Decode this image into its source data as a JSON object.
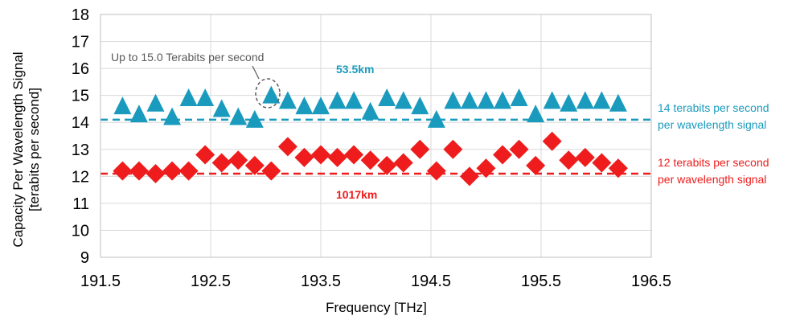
{
  "chart_data": {
    "type": "scatter",
    "xlabel": "Frequency [THz]",
    "ylabel_lines": [
      "Capacity Per Wavelength Signal",
      "[terabits per second]"
    ],
    "xlim": [
      191.5,
      196.5
    ],
    "ylim": [
      9,
      18
    ],
    "x_ticks": [
      "191.5",
      "192.5",
      "193.5",
      "194.5",
      "195.5",
      "196.5"
    ],
    "y_ticks": [
      "9",
      "10",
      "11",
      "12",
      "13",
      "14",
      "15",
      "16",
      "17",
      "18"
    ],
    "grid": true,
    "series": [
      {
        "name": "53.5km",
        "marker": "triangle",
        "color": "#1a9bbd",
        "x": [
          191.7,
          191.85,
          192.0,
          192.15,
          192.3,
          192.45,
          192.6,
          192.75,
          192.9,
          193.05,
          193.2,
          193.35,
          193.5,
          193.65,
          193.8,
          193.95,
          194.1,
          194.25,
          194.4,
          194.55,
          194.7,
          194.85,
          195.0,
          195.15,
          195.3,
          195.45,
          195.6,
          195.75,
          195.9,
          196.05,
          196.2
        ],
        "y": [
          14.6,
          14.3,
          14.7,
          14.2,
          14.9,
          14.9,
          14.5,
          14.2,
          14.1,
          15.0,
          14.8,
          14.6,
          14.6,
          14.8,
          14.8,
          14.4,
          14.9,
          14.8,
          14.6,
          14.1,
          14.8,
          14.8,
          14.8,
          14.8,
          14.9,
          14.3,
          14.8,
          14.7,
          14.8,
          14.8,
          14.7
        ]
      },
      {
        "name": "1017km",
        "marker": "diamond",
        "color": "#ee1c1c",
        "x": [
          191.7,
          191.85,
          192.0,
          192.15,
          192.3,
          192.45,
          192.6,
          192.75,
          192.9,
          193.05,
          193.2,
          193.35,
          193.5,
          193.65,
          193.8,
          193.95,
          194.1,
          194.25,
          194.4,
          194.55,
          194.7,
          194.85,
          195.0,
          195.15,
          195.3,
          195.45,
          195.6,
          195.75,
          195.9,
          196.05,
          196.2
        ],
        "y": [
          12.2,
          12.2,
          12.1,
          12.2,
          12.2,
          12.8,
          12.5,
          12.6,
          12.4,
          12.2,
          13.1,
          12.7,
          12.8,
          12.7,
          12.8,
          12.6,
          12.4,
          12.5,
          13.0,
          12.2,
          13.0,
          12.0,
          12.3,
          12.8,
          13.0,
          12.4,
          13.3,
          12.6,
          12.7,
          12.5,
          12.3
        ]
      }
    ],
    "reference_lines": [
      {
        "y": 14.1,
        "color": "#1a9bbd",
        "style": "dashed",
        "label_lines": [
          "14 terabits per second",
          "per wavelength signal"
        ]
      },
      {
        "y": 12.1,
        "color": "#ee1c1c",
        "style": "dashed",
        "label_lines": [
          "12 terabits per second",
          "per wavelength signal"
        ]
      }
    ],
    "annotation": {
      "text": "Up to 15.0 Terabits per second",
      "target_x": 193.05,
      "target_y": 15.0
    }
  }
}
